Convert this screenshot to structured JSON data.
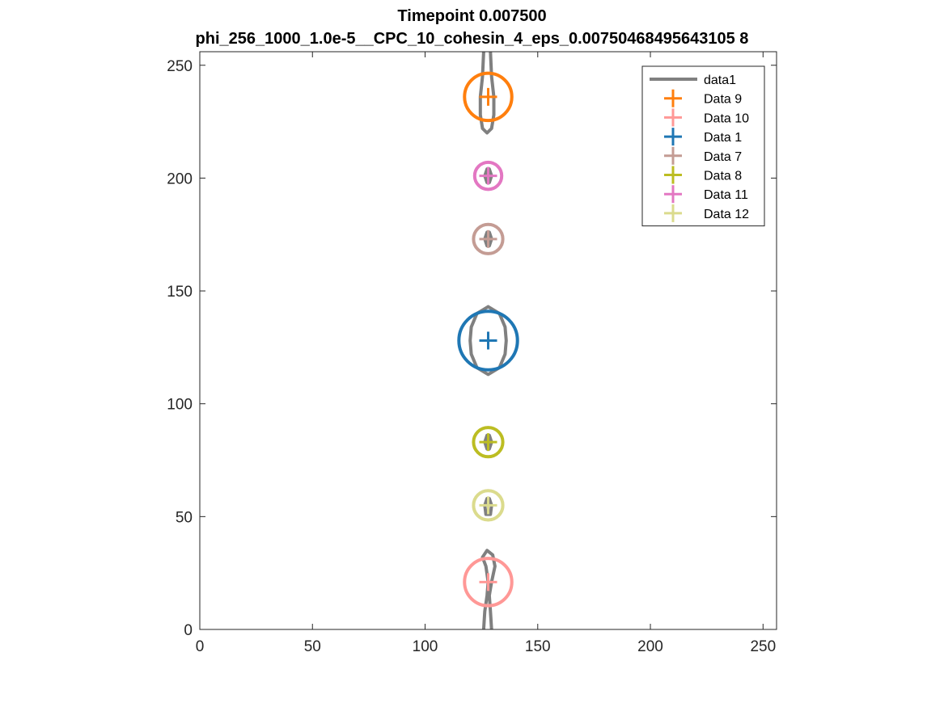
{
  "chart_data": {
    "type": "scatter",
    "title": "Timepoint 0.007500",
    "subtitle": "phi_256_1000_1.0e-5__CPC_10_cohesin_4_eps_0.00750468495643105 8",
    "xlim": [
      0,
      256
    ],
    "ylim": [
      0,
      256
    ],
    "xticks": [
      0,
      50,
      100,
      150,
      200,
      250
    ],
    "yticks": [
      0,
      50,
      100,
      150,
      200,
      250
    ],
    "xlabel": "",
    "ylabel": "",
    "grid": false,
    "legend_position": "top-right",
    "line_series": {
      "name": "data1",
      "color": "#808080",
      "contours": [
        [
          [
            126,
            256
          ],
          [
            125.5,
            245
          ],
          [
            124.5,
            236
          ],
          [
            124.5,
            228
          ],
          [
            125.5,
            222
          ],
          [
            127.5,
            220
          ],
          [
            129.5,
            222
          ],
          [
            130.5,
            228
          ],
          [
            130.5,
            236
          ],
          [
            129.5,
            245
          ],
          [
            129,
            256
          ]
        ],
        [
          [
            127.5,
            204
          ],
          [
            126.5,
            201
          ],
          [
            127.5,
            198
          ],
          [
            128.5,
            198
          ],
          [
            129.5,
            201
          ],
          [
            128.5,
            204
          ]
        ],
        [
          [
            127.5,
            176
          ],
          [
            126.5,
            173
          ],
          [
            127.5,
            170
          ],
          [
            128.5,
            170
          ],
          [
            129.5,
            173
          ],
          [
            128.5,
            176
          ]
        ],
        [
          [
            128,
            143
          ],
          [
            123,
            140
          ],
          [
            120.5,
            134
          ],
          [
            120,
            128
          ],
          [
            120.5,
            122
          ],
          [
            123,
            116
          ],
          [
            128,
            113
          ],
          [
            133,
            116
          ],
          [
            135.5,
            122
          ],
          [
            136,
            128
          ],
          [
            135.5,
            134
          ],
          [
            133,
            140
          ],
          [
            128,
            143
          ]
        ],
        [
          [
            127.5,
            86
          ],
          [
            126.5,
            83
          ],
          [
            127.5,
            80
          ],
          [
            128.5,
            80
          ],
          [
            129.5,
            83
          ],
          [
            128.5,
            86
          ]
        ],
        [
          [
            127.5,
            58
          ],
          [
            126.5,
            55
          ],
          [
            127,
            51
          ],
          [
            129,
            51
          ],
          [
            129.5,
            55
          ],
          [
            128.5,
            58
          ]
        ],
        [
          [
            126,
            0
          ],
          [
            126.5,
            8
          ],
          [
            127.5,
            15
          ],
          [
            128,
            21
          ],
          [
            127,
            28
          ],
          [
            125.5,
            32
          ],
          [
            127.5,
            35
          ],
          [
            130,
            33
          ],
          [
            131,
            28
          ],
          [
            129.5,
            21
          ],
          [
            128.5,
            15
          ],
          [
            129,
            8
          ],
          [
            129.5,
            0
          ]
        ]
      ]
    },
    "series": [
      {
        "name": "Data 9",
        "color": "#FF7F0E",
        "x": 128,
        "y": 236,
        "radius": 10.5
      },
      {
        "name": "Data 10",
        "color": "#FF9896",
        "x": 128,
        "y": 21,
        "radius": 10.5
      },
      {
        "name": "Data 1",
        "color": "#1F77B4",
        "x": 128,
        "y": 128,
        "radius": 13
      },
      {
        "name": "Data 7",
        "color": "#C49C94",
        "x": 128,
        "y": 173,
        "radius": 6.5
      },
      {
        "name": "Data 8",
        "color": "#BCBD22",
        "x": 128,
        "y": 83,
        "radius": 6.5
      },
      {
        "name": "Data 11",
        "color": "#E377C2",
        "x": 128,
        "y": 201,
        "radius": 6
      },
      {
        "name": "Data 12",
        "color": "#DBDB8D",
        "x": 128,
        "y": 55,
        "radius": 6.5
      }
    ]
  }
}
